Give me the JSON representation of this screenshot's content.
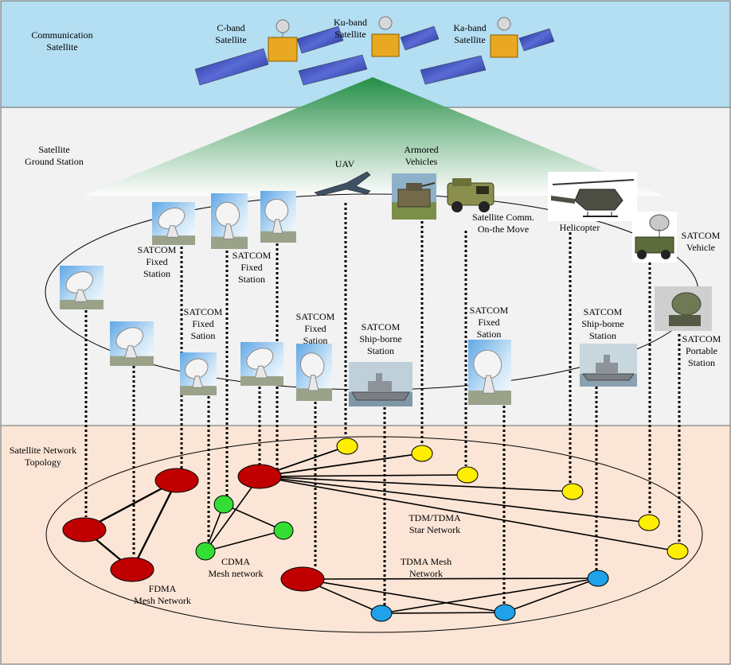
{
  "layers": {
    "space": "Communication\nSatellite",
    "ground": "Satellite\nGround Station",
    "topology": "Satellite Network\nTopology"
  },
  "satellites": [
    {
      "id": "c",
      "label": "C-band\nSatellite"
    },
    {
      "id": "ku",
      "label": "Ku-band\nSatellite"
    },
    {
      "id": "ka",
      "label": "Ka-band\nSatellite"
    }
  ],
  "terminals": [
    {
      "id": "uav",
      "label": "UAV",
      "icon": "uav-icon"
    },
    {
      "id": "armored",
      "label": "Armored\nVehicles",
      "icon": "armored-vehicle-icon"
    },
    {
      "id": "comm-otm",
      "label": "Satellite Comm.\nOn-the Move",
      "icon": "comm-vehicle-icon"
    },
    {
      "id": "helicopter",
      "label": "Helicopter",
      "icon": "helicopter-icon"
    },
    {
      "id": "satcom-vehicle",
      "label": "SATCOM\nVehicle",
      "icon": "satcom-truck-icon"
    },
    {
      "id": "fixed-1",
      "label": "SATCOM\nFixed\nStation",
      "icon": "dish-antenna-icon"
    },
    {
      "id": "fixed-2",
      "label": "SATCOM\nFixed\nStation",
      "icon": "dish-antenna-icon"
    },
    {
      "id": "fixed-3",
      "label": "SATCOM\nFixed\nSation",
      "icon": "dish-antenna-icon"
    },
    {
      "id": "fixed-4",
      "label": "SATCOM\nFixed\nSation",
      "icon": "dish-antenna-icon"
    },
    {
      "id": "fixed-5",
      "label": "SATCOM\nFixed\nSation",
      "icon": "dish-antenna-icon"
    },
    {
      "id": "ship-1",
      "label": "SATCOM\nShip-borne\nStation",
      "icon": "ship-icon"
    },
    {
      "id": "ship-2",
      "label": "SATCOM\nShip-borne\nStation",
      "icon": "ship-icon"
    },
    {
      "id": "portable",
      "label": "SATCOM\nPortable\nStation",
      "icon": "portable-terminal-icon"
    }
  ],
  "networks": [
    {
      "id": "fdma",
      "label": "FDMA\nMesh Network",
      "color": "#c00000"
    },
    {
      "id": "cdma",
      "label": "CDMA\nMesh network",
      "color": "#33dd33"
    },
    {
      "id": "star",
      "label": "TDM/TDMA\nStar Network",
      "color": "#ffee00"
    },
    {
      "id": "tdma",
      "label": "TDMA Mesh\nNetwork",
      "color": "#1fa2ea"
    }
  ],
  "colors": {
    "space_band": "#b4def2",
    "ground_band": "#f2f2f2",
    "topology_band": "#fbe5d6",
    "beam": "#2e9e4e",
    "hub_red": "#c00000",
    "node_green": "#33dd33",
    "node_yellow": "#ffee00",
    "node_blue": "#1fa2ea"
  }
}
